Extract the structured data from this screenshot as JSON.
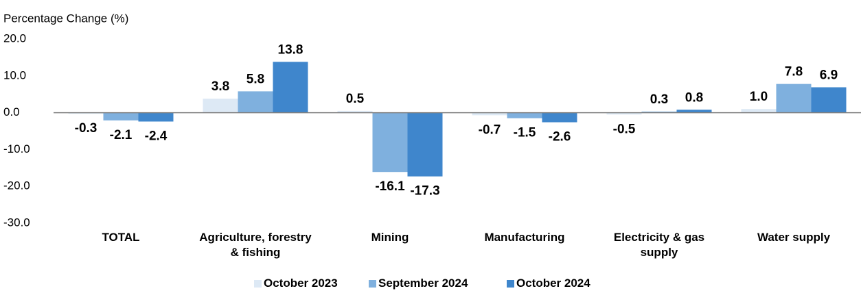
{
  "chart_data": {
    "type": "bar",
    "y_label": "Percentage Change (%)",
    "categories": [
      "TOTAL",
      "Agriculture, forestry & fishing",
      "Mining",
      "Manufacturing",
      "Electricity & gas supply",
      "Water supply"
    ],
    "series": [
      {
        "name": "October 2023",
        "color": "#dde9f5",
        "values": [
          -0.3,
          3.8,
          0.5,
          -0.7,
          -0.5,
          1.0
        ],
        "value_labels": [
          "-0.3",
          "3.8",
          "0.5",
          "-0.7",
          "-0.5",
          "1.0"
        ]
      },
      {
        "name": "September 2024",
        "color": "#7fb0de",
        "values": [
          -2.1,
          5.8,
          -16.1,
          -1.5,
          0.3,
          7.8
        ],
        "value_labels": [
          "-2.1",
          "5.8",
          "-16.1",
          "-1.5",
          "0.3",
          "7.8"
        ]
      },
      {
        "name": "October 2024",
        "color": "#3f86cc",
        "values": [
          -2.4,
          13.8,
          -17.3,
          -2.6,
          0.8,
          6.9
        ],
        "value_labels": [
          "-2.4",
          "13.8",
          "-17.3",
          "-2.6",
          "0.8",
          "6.9"
        ]
      }
    ],
    "ylim": [
      -30,
      20
    ],
    "yticks": [
      {
        "value": -30,
        "label": "-30.0"
      },
      {
        "value": -20,
        "label": "-20.0"
      },
      {
        "value": -10,
        "label": "-10.0"
      },
      {
        "value": 0,
        "label": "0.0"
      },
      {
        "value": 10,
        "label": "10.0"
      },
      {
        "value": 20,
        "label": "20.0"
      }
    ],
    "grid": false,
    "legend": "bottom"
  }
}
